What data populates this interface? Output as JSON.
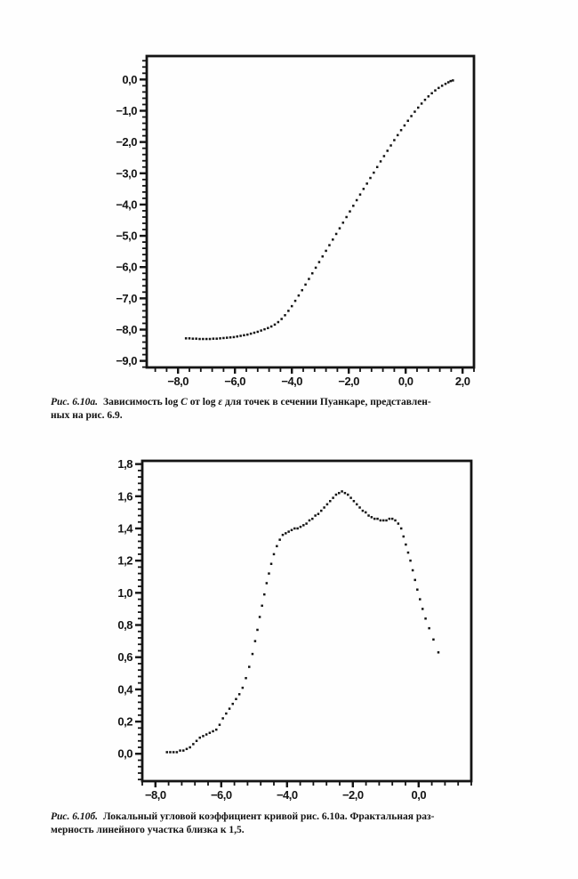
{
  "page": {
    "background": "#fefefe",
    "ink": "#141414"
  },
  "caption_a": {
    "fig_label": "Рис. 6.10а.",
    "t1": "Зависимость log",
    "v1": "C",
    "t2": "от log",
    "v2": "ε",
    "t3": "для точек в сечении Пуанкаре, представлен-",
    "line2": "ных на рис. 6.9."
  },
  "caption_b": {
    "fig_label": "Рис. 6.10б.",
    "line1": "Локальный угловой коэффициент кривой рис. 6.10а. Фрактальная раз-",
    "line2": "мерность линейного участка близка к 1,5."
  },
  "chart_data": [
    {
      "type": "scatter",
      "title": "",
      "xlabel": "",
      "ylabel": "",
      "grid": false,
      "legend": null,
      "xlim": [
        -9.1,
        2.4
      ],
      "ylim": [
        -9.21,
        0.75
      ],
      "x_tick_values": [
        -8,
        -6,
        -4,
        -2,
        0,
        2
      ],
      "x_tick_labels": [
        "−8,0",
        "−6,0",
        "−4,0",
        "−2,0",
        "0,0",
        "2,0"
      ],
      "x_minor_step": 0.4,
      "y_tick_values": [
        0,
        -1,
        -2,
        -3,
        -4,
        -5,
        -6,
        -7,
        -8,
        -9
      ],
      "y_tick_labels": [
        "0,0",
        "−1,0",
        "−2,0",
        "−3,0",
        "−4,0",
        "−5,0",
        "−6,0",
        "−7,0",
        "−8,0",
        "−9,0"
      ],
      "y_minor_step": 0.2,
      "points": [
        [
          -7.72,
          -8.28
        ],
        [
          -7.6,
          -8.28
        ],
        [
          -7.48,
          -8.29
        ],
        [
          -7.36,
          -8.29
        ],
        [
          -7.24,
          -8.3
        ],
        [
          -7.12,
          -8.3
        ],
        [
          -7.0,
          -8.3
        ],
        [
          -6.88,
          -8.3
        ],
        [
          -6.76,
          -8.29
        ],
        [
          -6.64,
          -8.29
        ],
        [
          -6.52,
          -8.28
        ],
        [
          -6.4,
          -8.27
        ],
        [
          -6.28,
          -8.26
        ],
        [
          -6.16,
          -8.25
        ],
        [
          -6.04,
          -8.24
        ],
        [
          -5.92,
          -8.22
        ],
        [
          -5.8,
          -8.2
        ],
        [
          -5.68,
          -8.18
        ],
        [
          -5.56,
          -8.16
        ],
        [
          -5.44,
          -8.13
        ],
        [
          -5.32,
          -8.1
        ],
        [
          -5.2,
          -8.07
        ],
        [
          -5.08,
          -8.03
        ],
        [
          -4.96,
          -7.99
        ],
        [
          -4.84,
          -7.95
        ],
        [
          -4.72,
          -7.9
        ],
        [
          -4.6,
          -7.84
        ],
        [
          -4.48,
          -7.76
        ],
        [
          -4.36,
          -7.66
        ],
        [
          -4.24,
          -7.54
        ],
        [
          -4.12,
          -7.4
        ],
        [
          -4.0,
          -7.25
        ],
        [
          -3.88,
          -7.08
        ],
        [
          -3.76,
          -6.91
        ],
        [
          -3.64,
          -6.74
        ],
        [
          -3.52,
          -6.56
        ],
        [
          -3.4,
          -6.38
        ],
        [
          -3.28,
          -6.2
        ],
        [
          -3.16,
          -6.02
        ],
        [
          -3.04,
          -5.84
        ],
        [
          -2.92,
          -5.66
        ],
        [
          -2.8,
          -5.48
        ],
        [
          -2.68,
          -5.3
        ],
        [
          -2.56,
          -5.12
        ],
        [
          -2.44,
          -4.94
        ],
        [
          -2.32,
          -4.76
        ],
        [
          -2.2,
          -4.58
        ],
        [
          -2.08,
          -4.4
        ],
        [
          -1.96,
          -4.22
        ],
        [
          -1.84,
          -4.04
        ],
        [
          -1.72,
          -3.86
        ],
        [
          -1.6,
          -3.68
        ],
        [
          -1.48,
          -3.5
        ],
        [
          -1.36,
          -3.33
        ],
        [
          -1.24,
          -3.15
        ],
        [
          -1.12,
          -2.98
        ],
        [
          -1.0,
          -2.8
        ],
        [
          -0.88,
          -2.62
        ],
        [
          -0.76,
          -2.45
        ],
        [
          -0.64,
          -2.28
        ],
        [
          -0.52,
          -2.11
        ],
        [
          -0.4,
          -1.94
        ],
        [
          -0.28,
          -1.78
        ],
        [
          -0.16,
          -1.62
        ],
        [
          -0.04,
          -1.47
        ],
        [
          0.08,
          -1.32
        ],
        [
          0.2,
          -1.17
        ],
        [
          0.32,
          -1.03
        ],
        [
          0.44,
          -0.9
        ],
        [
          0.56,
          -0.77
        ],
        [
          0.68,
          -0.65
        ],
        [
          0.8,
          -0.54
        ],
        [
          0.92,
          -0.44
        ],
        [
          1.04,
          -0.35
        ],
        [
          1.16,
          -0.27
        ],
        [
          1.28,
          -0.2
        ],
        [
          1.4,
          -0.14
        ],
        [
          1.5,
          -0.09
        ],
        [
          1.58,
          -0.05
        ],
        [
          1.66,
          -0.03
        ]
      ]
    },
    {
      "type": "scatter",
      "title": "",
      "xlabel": "",
      "ylabel": "",
      "grid": false,
      "legend": null,
      "xlim": [
        -8.4,
        1.6
      ],
      "ylim": [
        -0.17,
        1.82
      ],
      "x_tick_values": [
        -8,
        -6,
        -4,
        -2,
        0
      ],
      "x_tick_labels": [
        "−8,0",
        "−6,0",
        "−4,0",
        "−2,0",
        "0,0"
      ],
      "x_minor_step": 0.4,
      "y_tick_values": [
        1.8,
        1.6,
        1.4,
        1.2,
        1.0,
        0.8,
        0.6,
        0.4,
        0.2,
        0.0
      ],
      "y_tick_labels": [
        "1,8",
        "1,6",
        "1,4",
        "1,2",
        "1,0",
        "0,8",
        "0,6",
        "0,4",
        "0,2",
        "0,0"
      ],
      "y_minor_step": 0.04,
      "points": [
        [
          -7.65,
          0.01
        ],
        [
          -7.55,
          0.01
        ],
        [
          -7.45,
          0.01
        ],
        [
          -7.35,
          0.01
        ],
        [
          -7.25,
          0.02
        ],
        [
          -7.15,
          0.02
        ],
        [
          -7.05,
          0.03
        ],
        [
          -6.95,
          0.04
        ],
        [
          -6.85,
          0.06
        ],
        [
          -6.75,
          0.08
        ],
        [
          -6.65,
          0.1
        ],
        [
          -6.55,
          0.11
        ],
        [
          -6.45,
          0.12
        ],
        [
          -6.35,
          0.13
        ],
        [
          -6.25,
          0.14
        ],
        [
          -6.15,
          0.15
        ],
        [
          -6.05,
          0.18
        ],
        [
          -5.95,
          0.22
        ],
        [
          -5.85,
          0.25
        ],
        [
          -5.75,
          0.28
        ],
        [
          -5.65,
          0.31
        ],
        [
          -5.55,
          0.34
        ],
        [
          -5.45,
          0.37
        ],
        [
          -5.35,
          0.41
        ],
        [
          -5.25,
          0.47
        ],
        [
          -5.15,
          0.54
        ],
        [
          -5.05,
          0.62
        ],
        [
          -4.97,
          0.7
        ],
        [
          -4.9,
          0.77
        ],
        [
          -4.83,
          0.85
        ],
        [
          -4.76,
          0.92
        ],
        [
          -4.69,
          0.99
        ],
        [
          -4.62,
          1.06
        ],
        [
          -4.55,
          1.12
        ],
        [
          -4.48,
          1.18
        ],
        [
          -4.4,
          1.24
        ],
        [
          -4.31,
          1.29
        ],
        [
          -4.22,
          1.33
        ],
        [
          -4.13,
          1.36
        ],
        [
          -4.04,
          1.37
        ],
        [
          -3.95,
          1.38
        ],
        [
          -3.86,
          1.39
        ],
        [
          -3.77,
          1.4
        ],
        [
          -3.68,
          1.4
        ],
        [
          -3.59,
          1.41
        ],
        [
          -3.5,
          1.42
        ],
        [
          -3.41,
          1.43
        ],
        [
          -3.32,
          1.45
        ],
        [
          -3.23,
          1.46
        ],
        [
          -3.14,
          1.48
        ],
        [
          -3.05,
          1.49
        ],
        [
          -2.96,
          1.51
        ],
        [
          -2.87,
          1.53
        ],
        [
          -2.78,
          1.55
        ],
        [
          -2.69,
          1.57
        ],
        [
          -2.6,
          1.59
        ],
        [
          -2.51,
          1.61
        ],
        [
          -2.42,
          1.62
        ],
        [
          -2.33,
          1.63
        ],
        [
          -2.24,
          1.62
        ],
        [
          -2.15,
          1.61
        ],
        [
          -2.06,
          1.59
        ],
        [
          -1.97,
          1.57
        ],
        [
          -1.88,
          1.55
        ],
        [
          -1.79,
          1.53
        ],
        [
          -1.7,
          1.51
        ],
        [
          -1.61,
          1.5
        ],
        [
          -1.52,
          1.48
        ],
        [
          -1.43,
          1.47
        ],
        [
          -1.34,
          1.46
        ],
        [
          -1.25,
          1.46
        ],
        [
          -1.16,
          1.45
        ],
        [
          -1.07,
          1.45
        ],
        [
          -0.98,
          1.45
        ],
        [
          -0.89,
          1.46
        ],
        [
          -0.8,
          1.46
        ],
        [
          -0.71,
          1.45
        ],
        [
          -0.62,
          1.43
        ],
        [
          -0.53,
          1.4
        ],
        [
          -0.46,
          1.35
        ],
        [
          -0.39,
          1.3
        ],
        [
          -0.32,
          1.25
        ],
        [
          -0.25,
          1.2
        ],
        [
          -0.18,
          1.14
        ],
        [
          -0.11,
          1.08
        ],
        [
          -0.04,
          1.02
        ],
        [
          0.04,
          0.96
        ],
        [
          0.12,
          0.9
        ],
        [
          0.21,
          0.84
        ],
        [
          0.32,
          0.78
        ],
        [
          0.45,
          0.71
        ],
        [
          0.6,
          0.63
        ]
      ]
    }
  ]
}
